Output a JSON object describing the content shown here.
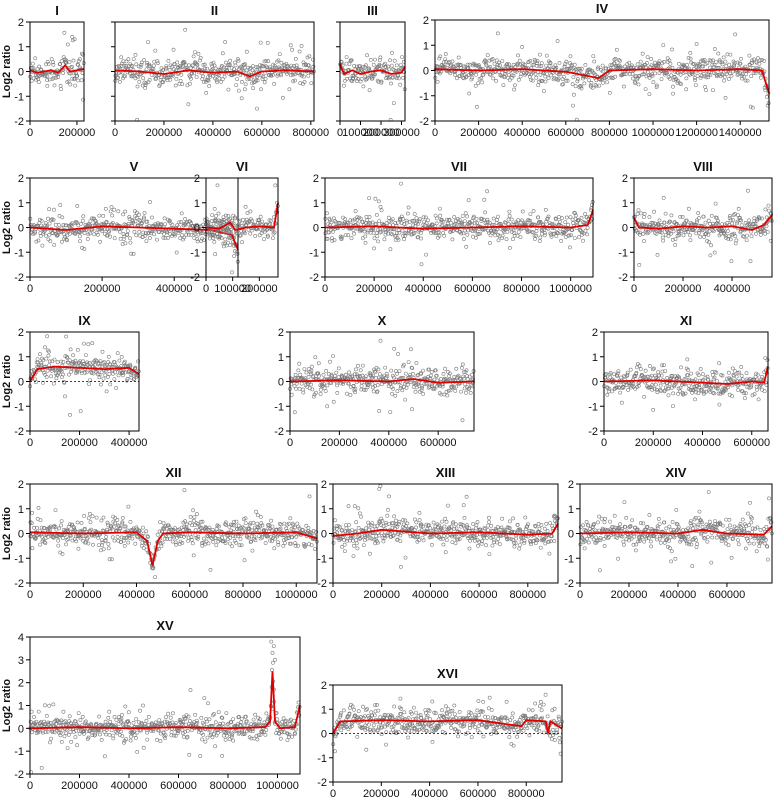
{
  "chart_data": [
    {
      "type": "scatter",
      "title": "I",
      "ylabel": "Log2 ratio",
      "xlim": [
        0,
        230000
      ],
      "ylim": [
        -2,
        2
      ],
      "xticks": [
        0,
        200000
      ],
      "yticks": [
        -2,
        -1,
        0,
        1,
        2
      ],
      "xtick_labels": [
        "0",
        "200000"
      ],
      "ytick_labels": [
        "-2",
        "-1",
        "0",
        "1",
        "2"
      ],
      "zero_line": false,
      "trend": [
        [
          0,
          0.05
        ],
        [
          30000,
          -0.05
        ],
        [
          60000,
          0.0
        ],
        [
          90000,
          0.05
        ],
        [
          120000,
          -0.05
        ],
        [
          150000,
          0.25
        ],
        [
          170000,
          0.0
        ],
        [
          200000,
          0.05
        ],
        [
          230000,
          0.1
        ]
      ],
      "outliers": [
        [
          180000,
          1.4
        ],
        [
          190000,
          1.3
        ]
      ],
      "spread": 0.25,
      "noise": 0.35
    },
    {
      "type": "scatter",
      "title": "II",
      "ylabel": "",
      "xlim": [
        0,
        813000
      ],
      "ylim": [
        -2,
        2
      ],
      "xticks": [
        0,
        200000,
        400000,
        600000,
        800000
      ],
      "yticks": [
        -2,
        -1,
        0,
        1,
        2
      ],
      "xtick_labels": [
        "0",
        "200000",
        "400000",
        "600000",
        "800000"
      ],
      "ytick_labels": [],
      "zero_line": false,
      "trend": [
        [
          0,
          0.05
        ],
        [
          100000,
          0.0
        ],
        [
          200000,
          -0.1
        ],
        [
          300000,
          0.05
        ],
        [
          400000,
          -0.05
        ],
        [
          500000,
          0.0
        ],
        [
          550000,
          -0.2
        ],
        [
          600000,
          0.0
        ],
        [
          700000,
          0.05
        ],
        [
          813000,
          0.0
        ]
      ],
      "outliers": [
        [
          580000,
          -1.5
        ]
      ],
      "spread": 0.25,
      "noise": 0.35
    },
    {
      "type": "scatter",
      "title": "III",
      "ylabel": "",
      "xlim": [
        0,
        317000
      ],
      "ylim": [
        -2,
        2
      ],
      "xticks": [
        0,
        100000,
        200000,
        300000
      ],
      "yticks": [
        -2,
        -1,
        0,
        1,
        2
      ],
      "xtick_labels": [
        "0",
        "100000",
        "200000",
        "300000"
      ],
      "ytick_labels": [],
      "zero_line": false,
      "trend": [
        [
          0,
          0.3
        ],
        [
          20000,
          -0.1
        ],
        [
          60000,
          0.05
        ],
        [
          100000,
          -0.1
        ],
        [
          150000,
          0.0
        ],
        [
          200000,
          0.05
        ],
        [
          250000,
          -0.1
        ],
        [
          300000,
          -0.05
        ],
        [
          317000,
          0.2
        ]
      ],
      "outliers": [],
      "spread": 0.25,
      "noise": 0.4
    },
    {
      "type": "scatter",
      "title": "IV",
      "ylabel": "",
      "xlim": [
        0,
        1532000
      ],
      "ylim": [
        -2,
        2
      ],
      "xticks": [
        0,
        200000,
        400000,
        600000,
        800000,
        1000000,
        1200000,
        1400000
      ],
      "yticks": [
        -2,
        -1,
        0,
        1,
        2
      ],
      "xtick_labels": [
        "0",
        "200000",
        "400000",
        "600000",
        "800000",
        "1000000",
        "1200000",
        "1400000"
      ],
      "ytick_labels": [
        "-2",
        "-1",
        "0",
        "1",
        "2"
      ],
      "zero_line": false,
      "trend": [
        [
          0,
          0.05
        ],
        [
          200000,
          0.0
        ],
        [
          400000,
          0.05
        ],
        [
          600000,
          -0.05
        ],
        [
          750000,
          -0.3
        ],
        [
          800000,
          0.0
        ],
        [
          1000000,
          0.05
        ],
        [
          1200000,
          0.0
        ],
        [
          1400000,
          0.05
        ],
        [
          1500000,
          0.0
        ],
        [
          1532000,
          -0.9
        ]
      ],
      "outliers": [
        [
          1200000,
          1.05
        ]
      ],
      "spread": 0.25,
      "noise": 0.35
    },
    {
      "type": "scatter",
      "title": "V",
      "ylabel": "Log2 ratio",
      "xlim": [
        0,
        577000
      ],
      "ylim": [
        -2,
        2
      ],
      "xticks": [
        0,
        200000,
        400000
      ],
      "yticks": [
        -2,
        -1,
        0,
        1,
        2
      ],
      "xtick_labels": [
        "0",
        "200000",
        "400000"
      ],
      "ytick_labels": [
        "-2",
        "-1",
        "0",
        "1",
        "2"
      ],
      "zero_line": false,
      "trend": [
        [
          0,
          0.0
        ],
        [
          100000,
          -0.1
        ],
        [
          200000,
          0.05
        ],
        [
          300000,
          0.0
        ],
        [
          400000,
          -0.05
        ],
        [
          500000,
          -0.1
        ],
        [
          560000,
          -0.3
        ],
        [
          577000,
          -0.9
        ]
      ],
      "outliers": [
        [
          520000,
          1.7
        ]
      ],
      "spread": 0.25,
      "noise": 0.35
    },
    {
      "type": "scatter",
      "title": "VI",
      "ylabel": "",
      "xlim": [
        0,
        270000
      ],
      "ylim": [
        -2,
        2
      ],
      "xticks": [
        0,
        100000,
        200000
      ],
      "yticks": [
        -2,
        -1,
        0,
        1,
        2
      ],
      "xtick_labels": [
        "0",
        "100000",
        "200000"
      ],
      "ytick_labels": [
        "-2",
        "-1",
        "0",
        "1",
        "2"
      ],
      "zero_line": false,
      "trend": [
        [
          0,
          0.0
        ],
        [
          50000,
          -0.05
        ],
        [
          90000,
          0.2
        ],
        [
          110000,
          -0.1
        ],
        [
          150000,
          0.0
        ],
        [
          200000,
          0.05
        ],
        [
          255000,
          0.0
        ],
        [
          270000,
          1.0
        ]
      ],
      "outliers": [
        [
          260000,
          1.7
        ]
      ],
      "spread": 0.2,
      "noise": 0.35
    },
    {
      "type": "scatter",
      "title": "VII",
      "ylabel": "",
      "xlim": [
        0,
        1091000
      ],
      "ylim": [
        -2,
        2
      ],
      "xticks": [
        0,
        200000,
        400000,
        600000,
        800000,
        1000000
      ],
      "yticks": [
        -2,
        -1,
        0,
        1,
        2
      ],
      "xtick_labels": [
        "0",
        "200000",
        "400000",
        "600000",
        "800000",
        "1000000"
      ],
      "ytick_labels": [
        "-2",
        "-1",
        "0",
        "1",
        "2"
      ],
      "zero_line": false,
      "trend": [
        [
          0,
          0.0
        ],
        [
          200000,
          0.05
        ],
        [
          400000,
          -0.05
        ],
        [
          600000,
          0.0
        ],
        [
          800000,
          0.05
        ],
        [
          1000000,
          0.0
        ],
        [
          1070000,
          0.1
        ],
        [
          1091000,
          0.7
        ]
      ],
      "outliers": [],
      "spread": 0.25,
      "noise": 0.35
    },
    {
      "type": "scatter",
      "title": "VIII",
      "ylabel": "",
      "xlim": [
        0,
        563000
      ],
      "ylim": [
        -2,
        2
      ],
      "xticks": [
        0,
        200000,
        400000
      ],
      "yticks": [
        -2,
        -1,
        0,
        1,
        2
      ],
      "xtick_labels": [
        "0",
        "200000",
        "400000"
      ],
      "ytick_labels": [
        "-2",
        "-1",
        "0",
        "1",
        "2"
      ],
      "zero_line": false,
      "trend": [
        [
          0,
          0.4
        ],
        [
          20000,
          0.0
        ],
        [
          100000,
          -0.05
        ],
        [
          200000,
          0.05
        ],
        [
          300000,
          0.0
        ],
        [
          400000,
          0.05
        ],
        [
          480000,
          -0.1
        ],
        [
          530000,
          0.1
        ],
        [
          563000,
          0.5
        ]
      ],
      "outliers": [],
      "spread": 0.25,
      "noise": 0.35
    },
    {
      "type": "scatter",
      "title": "IX",
      "ylabel": "Log2 ratio",
      "xlim": [
        0,
        440000
      ],
      "ylim": [
        -2,
        2
      ],
      "xticks": [
        0,
        200000,
        400000
      ],
      "yticks": [
        -2,
        -1,
        0,
        1,
        2
      ],
      "xtick_labels": [
        "0",
        "200000",
        "400000"
      ],
      "ytick_labels": [
        "-2",
        "-1",
        "0",
        "1",
        "2"
      ],
      "zero_line": true,
      "trend": [
        [
          0,
          0.0
        ],
        [
          30000,
          0.5
        ],
        [
          100000,
          0.6
        ],
        [
          200000,
          0.55
        ],
        [
          300000,
          0.5
        ],
        [
          400000,
          0.55
        ],
        [
          440000,
          0.3
        ]
      ],
      "outliers": [],
      "spread": 0.25,
      "noise": 0.35
    },
    {
      "type": "scatter",
      "title": "X",
      "ylabel": "",
      "xlim": [
        0,
        745000
      ],
      "ylim": [
        -2,
        2
      ],
      "xticks": [
        0,
        200000,
        400000,
        600000
      ],
      "yticks": [
        -2,
        -1,
        0,
        1,
        2
      ],
      "xtick_labels": [
        "0",
        "200000",
        "400000",
        "600000"
      ],
      "ytick_labels": [
        "-2",
        "-1",
        "0",
        "1",
        "2"
      ],
      "zero_line": false,
      "trend": [
        [
          0,
          0.0
        ],
        [
          200000,
          0.05
        ],
        [
          400000,
          0.0
        ],
        [
          500000,
          0.1
        ],
        [
          600000,
          -0.05
        ],
        [
          745000,
          0.0
        ]
      ],
      "outliers": [
        [
          490000,
          1.3
        ]
      ],
      "spread": 0.25,
      "noise": 0.35
    },
    {
      "type": "scatter",
      "title": "XI",
      "ylabel": "",
      "xlim": [
        0,
        666000
      ],
      "ylim": [
        -2,
        2
      ],
      "xticks": [
        0,
        200000,
        400000,
        600000
      ],
      "yticks": [
        -2,
        -1,
        0,
        1,
        2
      ],
      "xtick_labels": [
        "0",
        "200000",
        "400000",
        "600000"
      ],
      "ytick_labels": [
        "-2",
        "-1",
        "0",
        "1",
        "2"
      ],
      "zero_line": false,
      "trend": [
        [
          0,
          0.0
        ],
        [
          200000,
          0.05
        ],
        [
          400000,
          -0.05
        ],
        [
          500000,
          -0.1
        ],
        [
          600000,
          0.0
        ],
        [
          650000,
          -0.05
        ],
        [
          666000,
          0.6
        ]
      ],
      "outliers": [],
      "spread": 0.25,
      "noise": 0.35
    },
    {
      "type": "scatter",
      "title": "XII",
      "ylabel": "Log2 ratio",
      "xlim": [
        0,
        1078000
      ],
      "ylim": [
        -2,
        2
      ],
      "xticks": [
        0,
        200000,
        400000,
        600000,
        800000,
        1000000
      ],
      "yticks": [
        -2,
        -1,
        0,
        1,
        2
      ],
      "xtick_labels": [
        "0",
        "200000",
        "400000",
        "600000",
        "800000",
        "1000000"
      ],
      "ytick_labels": [
        "-2",
        "-1",
        "0",
        "1",
        "2"
      ],
      "zero_line": false,
      "trend": [
        [
          0,
          0.05
        ],
        [
          200000,
          0.0
        ],
        [
          400000,
          0.05
        ],
        [
          440000,
          -0.3
        ],
        [
          460000,
          -1.3
        ],
        [
          480000,
          -0.3
        ],
        [
          500000,
          0.0
        ],
        [
          600000,
          0.05
        ],
        [
          800000,
          0.0
        ],
        [
          1000000,
          0.05
        ],
        [
          1078000,
          -0.2
        ]
      ],
      "outliers": [
        [
          580000,
          1.75
        ],
        [
          1050000,
          1.5
        ]
      ],
      "spread": 0.25,
      "noise": 0.35
    },
    {
      "type": "scatter",
      "title": "XIII",
      "ylabel": "",
      "xlim": [
        0,
        924000
      ],
      "ylim": [
        -2,
        2
      ],
      "xticks": [
        0,
        200000,
        400000,
        600000,
        800000
      ],
      "yticks": [
        -2,
        -1,
        0,
        1,
        2
      ],
      "xtick_labels": [
        "0",
        "200000",
        "400000",
        "600000",
        "800000"
      ],
      "ytick_labels": [
        "-2",
        "-1",
        "0",
        "1",
        "2"
      ],
      "zero_line": false,
      "trend": [
        [
          0,
          -0.1
        ],
        [
          100000,
          0.0
        ],
        [
          200000,
          0.15
        ],
        [
          400000,
          0.0
        ],
        [
          600000,
          0.05
        ],
        [
          800000,
          -0.05
        ],
        [
          900000,
          0.0
        ],
        [
          924000,
          0.4
        ]
      ],
      "outliers": [
        [
          190000,
          1.8
        ],
        [
          230000,
          1.5
        ]
      ],
      "spread": 0.25,
      "noise": 0.35
    },
    {
      "type": "scatter",
      "title": "XIV",
      "ylabel": "",
      "xlim": [
        0,
        784000
      ],
      "ylim": [
        -2,
        2
      ],
      "xticks": [
        0,
        200000,
        400000,
        600000
      ],
      "yticks": [
        -2,
        -1,
        0,
        1,
        2
      ],
      "xtick_labels": [
        "0",
        "200000",
        "400000",
        "600000"
      ],
      "ytick_labels": [
        "-2",
        "-1",
        "0",
        "1",
        "2"
      ],
      "zero_line": false,
      "trend": [
        [
          0,
          0.0
        ],
        [
          200000,
          0.05
        ],
        [
          400000,
          0.0
        ],
        [
          500000,
          0.15
        ],
        [
          600000,
          0.0
        ],
        [
          750000,
          -0.05
        ],
        [
          784000,
          0.3
        ]
      ],
      "outliers": [],
      "spread": 0.25,
      "noise": 0.35
    },
    {
      "type": "scatter",
      "title": "XV",
      "ylabel": "Log2 ratio",
      "xlim": [
        0,
        1091000
      ],
      "ylim": [
        -2,
        4
      ],
      "xticks": [
        0,
        200000,
        400000,
        600000,
        800000,
        1000000
      ],
      "yticks": [
        -2,
        -1,
        0,
        1,
        2,
        3,
        4
      ],
      "xtick_labels": [
        "0",
        "200000",
        "400000",
        "600000",
        "800000",
        "1000000"
      ],
      "ytick_labels": [
        "-2",
        "-1",
        "0",
        "1",
        "2",
        "3",
        "4"
      ],
      "zero_line": false,
      "trend": [
        [
          0,
          0.0
        ],
        [
          200000,
          0.05
        ],
        [
          400000,
          0.0
        ],
        [
          600000,
          0.05
        ],
        [
          800000,
          0.0
        ],
        [
          950000,
          0.05
        ],
        [
          970000,
          0.3
        ],
        [
          980000,
          2.5
        ],
        [
          990000,
          0.3
        ],
        [
          1010000,
          0.0
        ],
        [
          1070000,
          0.05
        ],
        [
          1091000,
          1.0
        ]
      ],
      "outliers": [
        [
          975000,
          3.8
        ],
        [
          985000,
          3.6
        ],
        [
          980000,
          3.3
        ],
        [
          990000,
          3.0
        ]
      ],
      "spread": 0.25,
      "noise": 0.35
    },
    {
      "type": "scatter",
      "title": "XVI",
      "ylabel": "",
      "xlim": [
        0,
        948000
      ],
      "ylim": [
        -2,
        2
      ],
      "xticks": [
        0,
        200000,
        400000,
        600000,
        800000
      ],
      "yticks": [
        -2,
        -1,
        0,
        1,
        2
      ],
      "xtick_labels": [
        "0",
        "200000",
        "400000",
        "600000",
        "800000"
      ],
      "ytick_labels": [
        "-2",
        "-1",
        "0",
        "1",
        "2"
      ],
      "zero_line": true,
      "trend": [
        [
          0,
          0.0
        ],
        [
          30000,
          0.5
        ],
        [
          200000,
          0.55
        ],
        [
          400000,
          0.5
        ],
        [
          600000,
          0.55
        ],
        [
          780000,
          0.3
        ],
        [
          800000,
          0.55
        ],
        [
          880000,
          0.5
        ],
        [
          890000,
          0.0
        ],
        [
          900000,
          0.5
        ],
        [
          948000,
          0.2
        ]
      ],
      "outliers": [
        [
          880000,
          1.6
        ]
      ],
      "spread": 0.25,
      "noise": 0.35
    }
  ],
  "colors": {
    "trend": "#e00000",
    "points": "#7a7a7a",
    "axis": "#000000"
  }
}
